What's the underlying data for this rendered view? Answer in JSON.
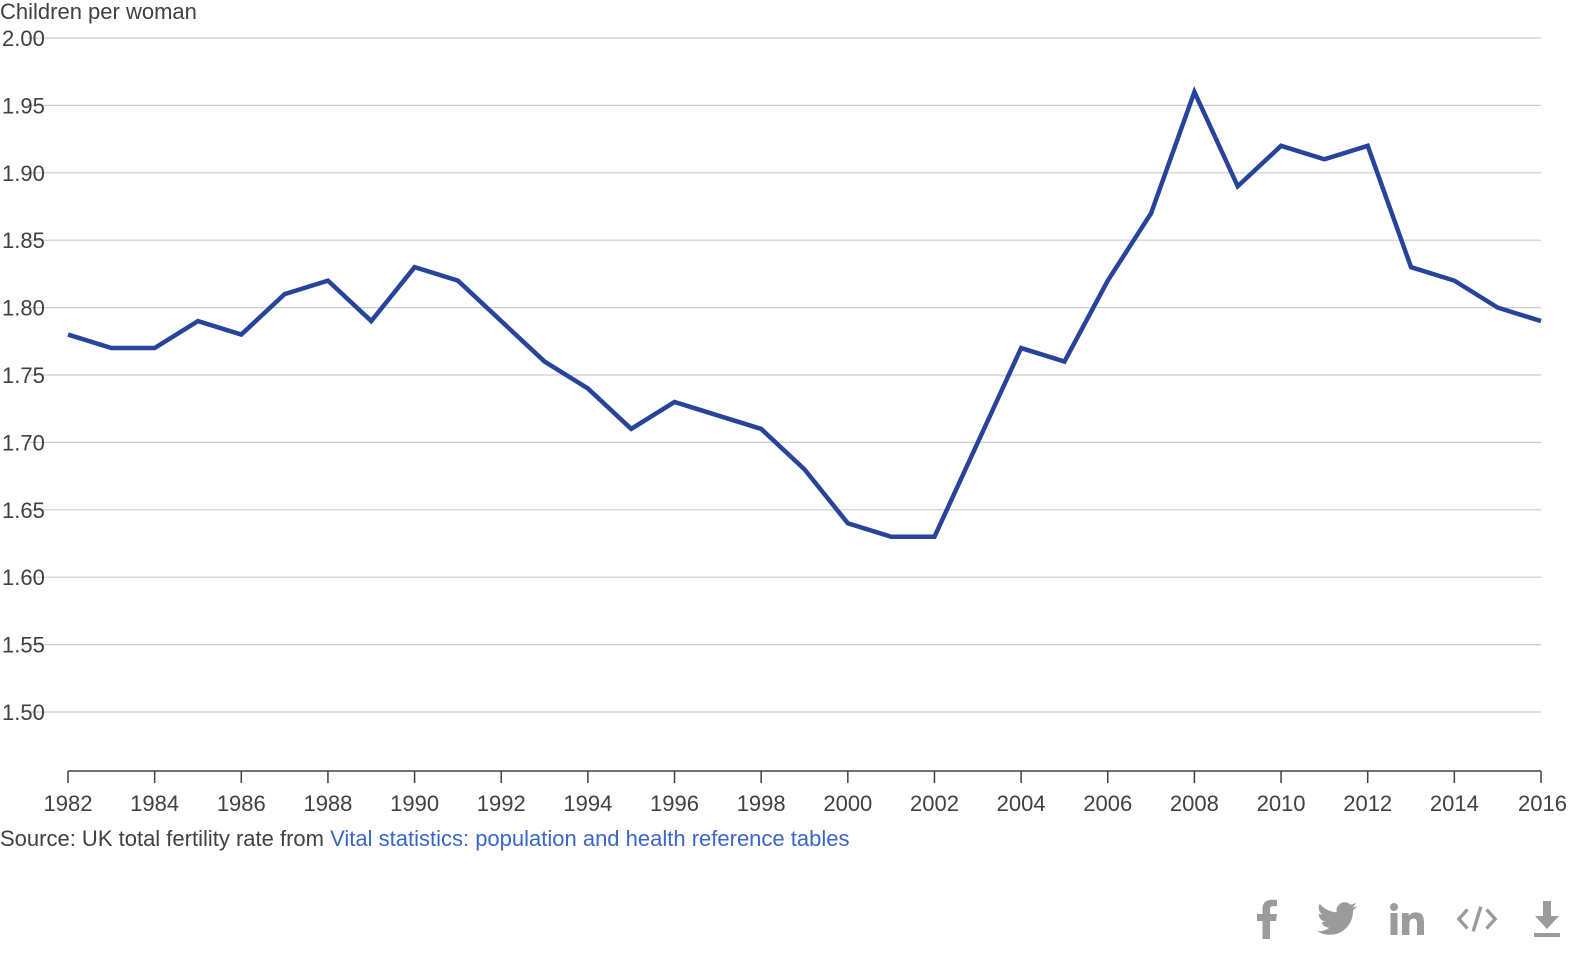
{
  "chart_data": {
    "type": "line",
    "ylabel": "Children per woman",
    "xlabel": "",
    "ylim": [
      1.45,
      2.0
    ],
    "xlim": [
      1982,
      2016
    ],
    "y_ticks": [
      "2.00",
      "1.95",
      "1.90",
      "1.85",
      "1.80",
      "1.75",
      "1.70",
      "1.65",
      "1.60",
      "1.55",
      "1.50"
    ],
    "x_ticks": [
      "1982",
      "1984",
      "1986",
      "1988",
      "1990",
      "1992",
      "1994",
      "1996",
      "1998",
      "2000",
      "2002",
      "2004",
      "2006",
      "2008",
      "2010",
      "2012",
      "2014",
      "2016"
    ],
    "grid": true,
    "series": [
      {
        "color": "#27449a",
        "x": [
          1982,
          1983,
          1984,
          1985,
          1986,
          1987,
          1988,
          1989,
          1990,
          1991,
          1992,
          1993,
          1994,
          1995,
          1996,
          1997,
          1998,
          1999,
          2000,
          2001,
          2002,
          2003,
          2004,
          2005,
          2006,
          2007,
          2008,
          2009,
          2010,
          2011,
          2012,
          2013,
          2014,
          2015,
          2016
        ],
        "values": [
          1.78,
          1.77,
          1.77,
          1.79,
          1.78,
          1.81,
          1.82,
          1.79,
          1.83,
          1.82,
          1.79,
          1.76,
          1.74,
          1.71,
          1.73,
          1.72,
          1.71,
          1.68,
          1.64,
          1.63,
          1.63,
          1.7,
          1.77,
          1.76,
          1.82,
          1.87,
          1.96,
          1.89,
          1.92,
          1.91,
          1.92,
          1.83,
          1.82,
          1.8,
          1.79
        ]
      }
    ]
  },
  "source": {
    "prefix": "Source: UK total fertility rate from ",
    "link_text": "Vital statistics: population and health reference tables"
  },
  "share": {
    "icons": [
      "facebook-icon",
      "twitter-icon",
      "linkedin-icon",
      "embed-icon",
      "download-icon"
    ],
    "icon_color": "#9b9b9b"
  }
}
